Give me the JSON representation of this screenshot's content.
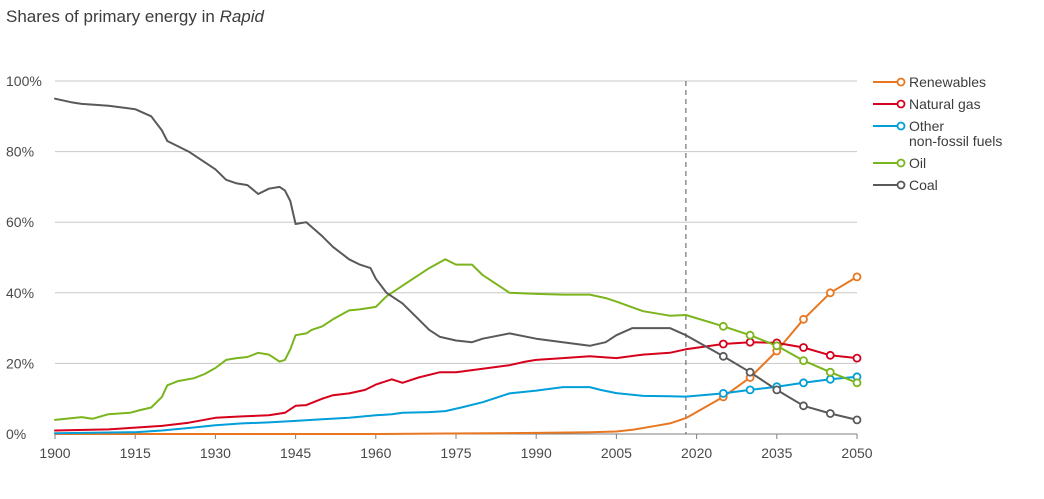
{
  "chart_data": {
    "type": "line",
    "title": "Shares of primary energy in",
    "title_emphasis": "Rapid",
    "xlabel": "",
    "ylabel": "",
    "xlim": [
      1900,
      2050
    ],
    "ylim": [
      0,
      100
    ],
    "x_ticks": [
      1900,
      1915,
      1930,
      1945,
      1960,
      1975,
      1990,
      2005,
      2020,
      2035,
      2050
    ],
    "y_ticks": [
      0,
      20,
      40,
      60,
      80,
      100
    ],
    "y_tick_labels": [
      "0%",
      "20%",
      "40%",
      "60%",
      "80%",
      "100%"
    ],
    "grid": "horizontal",
    "legend_position": "right",
    "projection_start": 2018,
    "projection_marker_years": [
      2025,
      2030,
      2035,
      2040,
      2045,
      2050
    ],
    "series": [
      {
        "name": "Renewables",
        "color": "#e87722",
        "historical": [
          [
            1900,
            0
          ],
          [
            1960,
            0
          ],
          [
            1970,
            0.1
          ],
          [
            1990,
            0.3
          ],
          [
            2000,
            0.5
          ],
          [
            2005,
            0.7
          ],
          [
            2008,
            1.2
          ],
          [
            2012,
            2.2
          ],
          [
            2015,
            3
          ],
          [
            2018,
            4.5
          ]
        ],
        "projection": [
          [
            2018,
            4.5
          ],
          [
            2025,
            10.5
          ],
          [
            2030,
            16
          ],
          [
            2035,
            23.5
          ],
          [
            2040,
            32.5
          ],
          [
            2045,
            40
          ],
          [
            2050,
            44.5
          ]
        ]
      },
      {
        "name": "Natural gas",
        "color": "#d6001c",
        "historical": [
          [
            1900,
            1
          ],
          [
            1910,
            1.3
          ],
          [
            1915,
            1.8
          ],
          [
            1920,
            2.3
          ],
          [
            1925,
            3.2
          ],
          [
            1930,
            4.6
          ],
          [
            1935,
            5
          ],
          [
            1940,
            5.3
          ],
          [
            1943,
            6
          ],
          [
            1945,
            8
          ],
          [
            1947,
            8.2
          ],
          [
            1950,
            10
          ],
          [
            1952,
            11
          ],
          [
            1955,
            11.5
          ],
          [
            1958,
            12.5
          ],
          [
            1960,
            14
          ],
          [
            1963,
            15.5
          ],
          [
            1965,
            14.5
          ],
          [
            1968,
            16
          ],
          [
            1972,
            17.5
          ],
          [
            1975,
            17.5
          ],
          [
            1980,
            18.5
          ],
          [
            1985,
            19.5
          ],
          [
            1988,
            20.5
          ],
          [
            1990,
            21
          ],
          [
            1995,
            21.5
          ],
          [
            2000,
            22
          ],
          [
            2005,
            21.5
          ],
          [
            2010,
            22.5
          ],
          [
            2015,
            23
          ],
          [
            2018,
            24
          ]
        ],
        "projection": [
          [
            2018,
            24
          ],
          [
            2025,
            25.5
          ],
          [
            2030,
            26
          ],
          [
            2035,
            25.8
          ],
          [
            2040,
            24.5
          ],
          [
            2045,
            22.3
          ],
          [
            2050,
            21.5
          ]
        ]
      },
      {
        "name": "Other non-fossil fuels",
        "color": "#009fda",
        "historical": [
          [
            1900,
            0.2
          ],
          [
            1915,
            0.5
          ],
          [
            1920,
            1
          ],
          [
            1925,
            1.7
          ],
          [
            1930,
            2.5
          ],
          [
            1935,
            3
          ],
          [
            1940,
            3.3
          ],
          [
            1945,
            3.7
          ],
          [
            1950,
            4.2
          ],
          [
            1955,
            4.6
          ],
          [
            1960,
            5.3
          ],
          [
            1963,
            5.6
          ],
          [
            1965,
            6
          ],
          [
            1970,
            6.2
          ],
          [
            1973,
            6.5
          ],
          [
            1976,
            7.5
          ],
          [
            1980,
            9
          ],
          [
            1985,
            11.5
          ],
          [
            1990,
            12.3
          ],
          [
            1995,
            13.3
          ],
          [
            2000,
            13.3
          ],
          [
            2002,
            12.5
          ],
          [
            2005,
            11.6
          ],
          [
            2010,
            10.8
          ],
          [
            2015,
            10.7
          ],
          [
            2018,
            10.6
          ]
        ],
        "projection": [
          [
            2018,
            10.6
          ],
          [
            2025,
            11.5
          ],
          [
            2030,
            12.5
          ],
          [
            2035,
            13.4
          ],
          [
            2040,
            14.5
          ],
          [
            2045,
            15.5
          ],
          [
            2050,
            16.2
          ]
        ]
      },
      {
        "name": "Oil",
        "color": "#7ab51d",
        "historical": [
          [
            1900,
            4
          ],
          [
            1905,
            4.8
          ],
          [
            1907,
            4.3
          ],
          [
            1910,
            5.6
          ],
          [
            1914,
            6
          ],
          [
            1916,
            6.8
          ],
          [
            1918,
            7.5
          ],
          [
            1920,
            10.5
          ],
          [
            1921,
            13.8
          ],
          [
            1923,
            15
          ],
          [
            1926,
            15.8
          ],
          [
            1928,
            17
          ],
          [
            1930,
            18.7
          ],
          [
            1932,
            21
          ],
          [
            1934,
            21.5
          ],
          [
            1936,
            21.8
          ],
          [
            1938,
            23
          ],
          [
            1940,
            22.5
          ],
          [
            1941,
            21.5
          ],
          [
            1942,
            20.5
          ],
          [
            1943,
            21
          ],
          [
            1944,
            24
          ],
          [
            1945,
            28
          ],
          [
            1947,
            28.5
          ],
          [
            1948,
            29.5
          ],
          [
            1950,
            30.5
          ],
          [
            1952,
            32.5
          ],
          [
            1955,
            35
          ],
          [
            1957,
            35.3
          ],
          [
            1960,
            36
          ],
          [
            1962,
            39
          ],
          [
            1965,
            42
          ],
          [
            1968,
            45
          ],
          [
            1970,
            47
          ],
          [
            1973,
            49.5
          ],
          [
            1975,
            48
          ],
          [
            1978,
            48
          ],
          [
            1980,
            45
          ],
          [
            1983,
            42
          ],
          [
            1985,
            40
          ],
          [
            1990,
            39.7
          ],
          [
            1995,
            39.5
          ],
          [
            2000,
            39.5
          ],
          [
            2003,
            38.5
          ],
          [
            2005,
            37.5
          ],
          [
            2010,
            34.8
          ],
          [
            2015,
            33.5
          ],
          [
            2018,
            33.7
          ]
        ],
        "projection": [
          [
            2018,
            33.7
          ],
          [
            2025,
            30.5
          ],
          [
            2030,
            28
          ],
          [
            2035,
            25
          ],
          [
            2040,
            20.8
          ],
          [
            2045,
            17.5
          ],
          [
            2050,
            14.5
          ]
        ]
      },
      {
        "name": "Coal",
        "color": "#595959",
        "historical": [
          [
            1900,
            95
          ],
          [
            1903,
            94
          ],
          [
            1905,
            93.5
          ],
          [
            1910,
            93
          ],
          [
            1915,
            92
          ],
          [
            1918,
            90
          ],
          [
            1920,
            86
          ],
          [
            1921,
            83
          ],
          [
            1925,
            80
          ],
          [
            1930,
            75
          ],
          [
            1932,
            72
          ],
          [
            1934,
            71
          ],
          [
            1936,
            70.5
          ],
          [
            1938,
            68
          ],
          [
            1940,
            69.5
          ],
          [
            1942,
            70
          ],
          [
            1943,
            69
          ],
          [
            1944,
            66
          ],
          [
            1945,
            59.5
          ],
          [
            1947,
            60
          ],
          [
            1950,
            56
          ],
          [
            1952,
            53
          ],
          [
            1955,
            49.5
          ],
          [
            1957,
            48
          ],
          [
            1959,
            47
          ],
          [
            1960,
            44
          ],
          [
            1962,
            40
          ],
          [
            1965,
            37
          ],
          [
            1968,
            32.5
          ],
          [
            1970,
            29.5
          ],
          [
            1972,
            27.5
          ],
          [
            1975,
            26.5
          ],
          [
            1978,
            26
          ],
          [
            1980,
            27
          ],
          [
            1985,
            28.5
          ],
          [
            1990,
            27
          ],
          [
            1995,
            26
          ],
          [
            2000,
            25
          ],
          [
            2003,
            26
          ],
          [
            2005,
            28
          ],
          [
            2008,
            30
          ],
          [
            2010,
            30
          ],
          [
            2015,
            30
          ],
          [
            2018,
            28
          ]
        ],
        "projection": [
          [
            2018,
            28
          ],
          [
            2025,
            22
          ],
          [
            2030,
            17.5
          ],
          [
            2035,
            12.5
          ],
          [
            2040,
            8
          ],
          [
            2045,
            5.8
          ],
          [
            2050,
            4
          ]
        ]
      }
    ],
    "legend_items": [
      {
        "series": 0,
        "lines": [
          "Renewables"
        ]
      },
      {
        "series": 1,
        "lines": [
          "Natural gas"
        ]
      },
      {
        "series": 2,
        "lines": [
          "Other",
          "non-fossil fuels"
        ]
      },
      {
        "series": 3,
        "lines": [
          "Oil"
        ]
      },
      {
        "series": 4,
        "lines": [
          "Coal"
        ]
      }
    ],
    "colors": {
      "grid": "#c8c8c8",
      "axis": "#7f7f7f",
      "divider": "#555555"
    }
  }
}
